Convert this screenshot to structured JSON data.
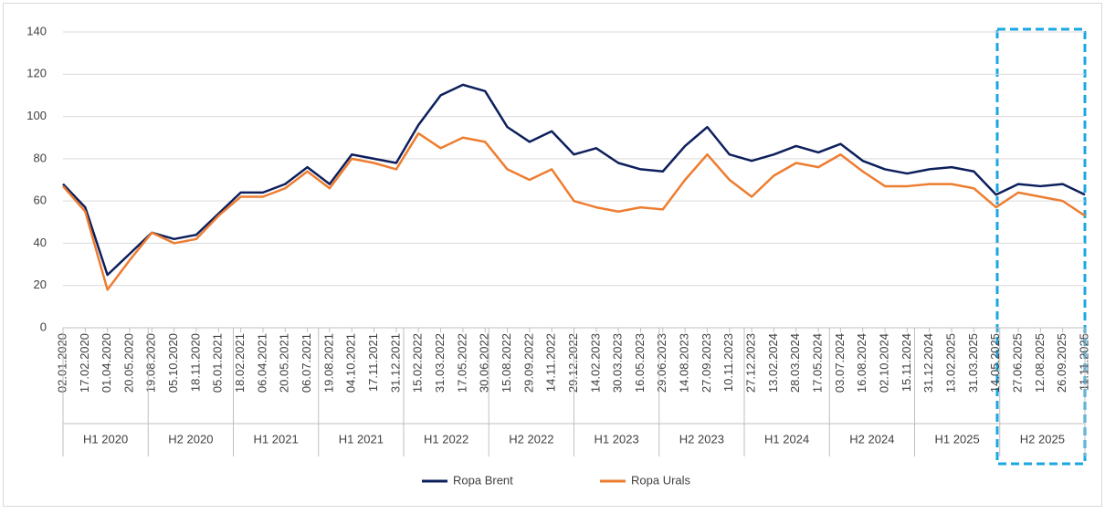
{
  "chart_data": {
    "type": "line",
    "categories": [
      "02.01.2020",
      "17.02.2020",
      "01.04.2020",
      "20.05.2020",
      "19.08.2020",
      "05.10.2020",
      "18.11.2020",
      "05.01.2021",
      "18.02.2021",
      "06.04.2021",
      "20.05.2021",
      "06.07.2021",
      "19.08.2021",
      "04.10.2021",
      "17.11.2021",
      "31.12.2021",
      "15.02.2022",
      "31.03.2022",
      "17.05.2022",
      "30.06.2022",
      "15.08.2022",
      "29.09.2022",
      "14.11.2022",
      "29.12.2022",
      "14.02.2023",
      "30.03.2023",
      "16.05.2023",
      "29.06.2023",
      "14.08.2023",
      "27.09.2023",
      "10.11.2023",
      "27.12.2023",
      "13.02.2024",
      "28.03.2024",
      "17.05.2024",
      "03.07.2024",
      "16.08.2024",
      "02.10.2024",
      "15.11.2024",
      "31.12.2024",
      "13.02.2025",
      "31.03.2025",
      "14.05.2025",
      "27.06.2025",
      "12.08.2025",
      "26.09.2025",
      "11.11.2025"
    ],
    "groups": [
      "H1 2020",
      "H2 2020",
      "H1 2021",
      "H1 2021",
      "H1 2022",
      "H2 2022",
      "H1 2023",
      "H2 2023",
      "H1 2024",
      "H2 2024",
      "H1 2025",
      "H2 2025"
    ],
    "series": [
      {
        "name": "Ropa Brent",
        "color": "#0d1f5c",
        "values": [
          68,
          57,
          25,
          35,
          45,
          42,
          44,
          54,
          64,
          64,
          68,
          76,
          68,
          82,
          80,
          78,
          96,
          110,
          115,
          112,
          95,
          88,
          93,
          82,
          85,
          78,
          75,
          74,
          86,
          95,
          82,
          79,
          82,
          86,
          83,
          87,
          79,
          75,
          73,
          75,
          76,
          74,
          63,
          68,
          67,
          68,
          63
        ]
      },
      {
        "name": "Ropa Urals",
        "color": "#ed7d31",
        "values": [
          67,
          55,
          18,
          32,
          45,
          40,
          42,
          53,
          62,
          62,
          66,
          74,
          66,
          80,
          78,
          75,
          92,
          85,
          90,
          88,
          75,
          70,
          75,
          60,
          57,
          55,
          57,
          56,
          70,
          82,
          70,
          62,
          72,
          78,
          76,
          82,
          74,
          67,
          67,
          68,
          68,
          66,
          57,
          64,
          62,
          60,
          53
        ]
      }
    ],
    "ylim": [
      0,
      140
    ],
    "yticks": [
      0,
      20,
      40,
      60,
      80,
      100,
      120,
      140
    ],
    "grid": true,
    "legend": "bottom"
  }
}
